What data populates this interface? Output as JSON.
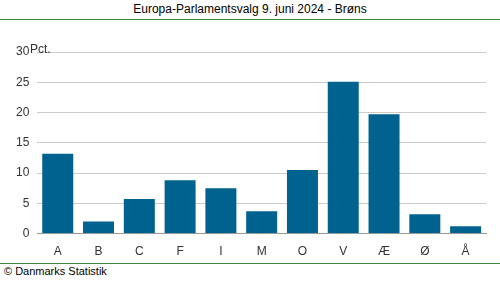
{
  "chart_data": {
    "type": "bar",
    "title": "Europa-Parlamentsvalg 9. juni 2024 - Brøns",
    "ylabel": "Pct.",
    "annotations": [
      "© Danmarks Statistik"
    ],
    "categories": [
      "A",
      "B",
      "C",
      "F",
      "I",
      "M",
      "O",
      "V",
      "Æ",
      "Ø",
      "Å"
    ],
    "values": [
      13.2,
      2.0,
      5.7,
      8.8,
      7.5,
      3.7,
      10.5,
      25.1,
      19.7,
      3.2,
      1.2
    ],
    "color": "#00628f",
    "ylim": [
      0,
      30
    ],
    "yticks": [
      0,
      5,
      10,
      15,
      20,
      25,
      30
    ],
    "grid": true
  }
}
